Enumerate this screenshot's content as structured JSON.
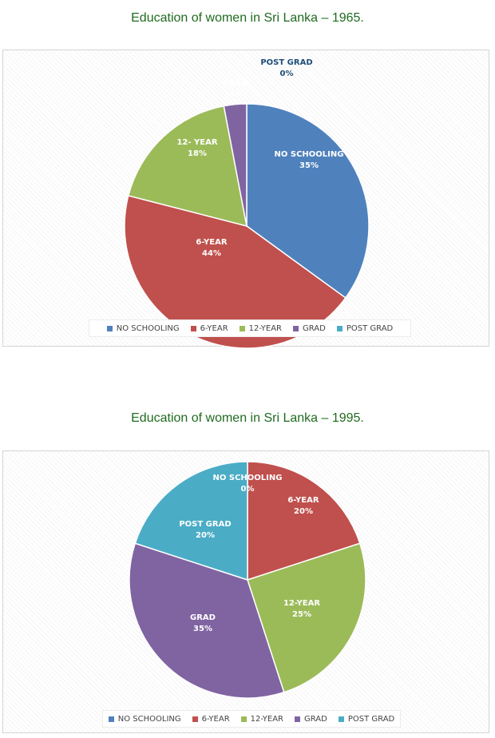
{
  "chart_data": [
    {
      "type": "pie",
      "title": "Education of women in Sri Lanka – 1965.",
      "categories": [
        "NO SCHOOLING",
        "6-YEAR",
        "12- YEAR",
        "GRAD",
        "POST GRAD"
      ],
      "values": [
        35,
        44,
        18,
        3,
        0
      ],
      "value_labels": [
        "35%",
        "44%",
        "18%",
        "3%",
        "0%"
      ],
      "legend": {
        "placement": "bottom",
        "entries": [
          "NO SCHOOLING",
          "6-YEAR",
          "12-YEAR",
          "GRAD",
          "POST GRAD"
        ]
      },
      "colors": [
        "#4f81bd",
        "#c0504d",
        "#9bbb59",
        "#8064a2",
        "#4bacc6"
      ]
    },
    {
      "type": "pie",
      "title": "Education of women in Sri Lanka – 1995.",
      "categories": [
        "NO SCHOOLING",
        "6-YEAR",
        "12-YEAR",
        "GRAD",
        "POST GRAD"
      ],
      "values": [
        0,
        20,
        25,
        35,
        20
      ],
      "value_labels": [
        "0%",
        "20%",
        "25%",
        "35%",
        "20%"
      ],
      "legend": {
        "placement": "bottom",
        "entries": [
          "NO SCHOOLING",
          "6-YEAR",
          "12-YEAR",
          "GRAD",
          "POST GRAD"
        ]
      },
      "colors": [
        "#4f81bd",
        "#c0504d",
        "#9bbb59",
        "#8064a2",
        "#4bacc6"
      ]
    }
  ]
}
